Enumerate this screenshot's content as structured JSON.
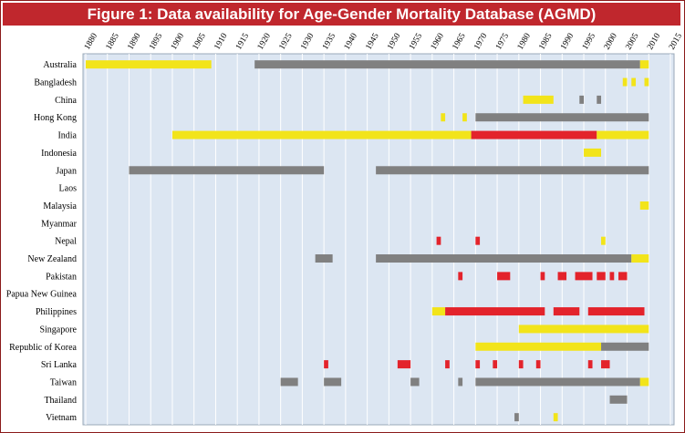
{
  "chart_data": {
    "type": "bar",
    "title": "Figure 1: Data availability for Age-Gender Mortality Database (AGMD)",
    "xlabel": "",
    "ylabel": "",
    "xlim": [
      1880,
      2015
    ],
    "x_ticks": [
      1880,
      1885,
      1890,
      1895,
      1900,
      1905,
      1910,
      1915,
      1920,
      1925,
      1930,
      1935,
      1940,
      1945,
      1950,
      1955,
      1960,
      1965,
      1970,
      1975,
      1980,
      1985,
      1990,
      1995,
      2000,
      2005,
      2010,
      2015
    ],
    "grid": true,
    "colors": {
      "yellow": "#f2e41a",
      "gray": "#808080",
      "red": "#e3232b"
    },
    "categories": [
      "Australia",
      "Bangladesh",
      "China",
      "Hong Kong",
      "India",
      "Indonesia",
      "Japan",
      "Laos",
      "Malaysia",
      "Myanmar",
      "Nepal",
      "New Zealand",
      "Pakistan",
      "Papua New Guinea",
      "Philippines",
      "Singapore",
      "Republic of Korea",
      "Sri Lanka",
      "Taiwan",
      "Thailand",
      "Vietnam"
    ],
    "segments": [
      {
        "country": "Australia",
        "start": 1880,
        "end": 1909,
        "color": "yellow"
      },
      {
        "country": "Australia",
        "start": 1919,
        "end": 2008,
        "color": "gray"
      },
      {
        "country": "Australia",
        "start": 2008,
        "end": 2010,
        "color": "yellow"
      },
      {
        "country": "Bangladesh",
        "start": 2004,
        "end": 2005,
        "color": "yellow"
      },
      {
        "country": "Bangladesh",
        "start": 2006,
        "end": 2007,
        "color": "yellow"
      },
      {
        "country": "Bangladesh",
        "start": 2009,
        "end": 2010,
        "color": "yellow"
      },
      {
        "country": "China",
        "start": 1981,
        "end": 1988,
        "color": "yellow"
      },
      {
        "country": "China",
        "start": 1994,
        "end": 1995,
        "color": "gray"
      },
      {
        "country": "China",
        "start": 1998,
        "end": 1999,
        "color": "gray"
      },
      {
        "country": "Hong Kong",
        "start": 1962,
        "end": 1963,
        "color": "yellow"
      },
      {
        "country": "Hong Kong",
        "start": 1967,
        "end": 1968,
        "color": "yellow"
      },
      {
        "country": "Hong Kong",
        "start": 1970,
        "end": 2010,
        "color": "gray"
      },
      {
        "country": "India",
        "start": 1900,
        "end": 1969,
        "color": "yellow"
      },
      {
        "country": "India",
        "start": 1969,
        "end": 1998,
        "color": "red"
      },
      {
        "country": "India",
        "start": 1998,
        "end": 2010,
        "color": "yellow"
      },
      {
        "country": "Indonesia",
        "start": 1995,
        "end": 1999,
        "color": "yellow"
      },
      {
        "country": "Japan",
        "start": 1890,
        "end": 1935,
        "color": "gray"
      },
      {
        "country": "Japan",
        "start": 1947,
        "end": 2010,
        "color": "gray"
      },
      {
        "country": "Malaysia",
        "start": 2008,
        "end": 2010,
        "color": "yellow"
      },
      {
        "country": "Nepal",
        "start": 1961,
        "end": 1962,
        "color": "red"
      },
      {
        "country": "Nepal",
        "start": 1970,
        "end": 1971,
        "color": "red"
      },
      {
        "country": "Nepal",
        "start": 1999,
        "end": 2000,
        "color": "yellow"
      },
      {
        "country": "New Zealand",
        "start": 1933,
        "end": 1937,
        "color": "gray"
      },
      {
        "country": "New Zealand",
        "start": 1947,
        "end": 2006,
        "color": "gray"
      },
      {
        "country": "New Zealand",
        "start": 2006,
        "end": 2010,
        "color": "yellow"
      },
      {
        "country": "Pakistan",
        "start": 1966,
        "end": 1967,
        "color": "red"
      },
      {
        "country": "Pakistan",
        "start": 1975,
        "end": 1978,
        "color": "red"
      },
      {
        "country": "Pakistan",
        "start": 1985,
        "end": 1986,
        "color": "red"
      },
      {
        "country": "Pakistan",
        "start": 1989,
        "end": 1991,
        "color": "red"
      },
      {
        "country": "Pakistan",
        "start": 1993,
        "end": 1997,
        "color": "red"
      },
      {
        "country": "Pakistan",
        "start": 1998,
        "end": 2000,
        "color": "red"
      },
      {
        "country": "Pakistan",
        "start": 2001,
        "end": 2002,
        "color": "red"
      },
      {
        "country": "Pakistan",
        "start": 2003,
        "end": 2005,
        "color": "red"
      },
      {
        "country": "Philippines",
        "start": 1960,
        "end": 1963,
        "color": "yellow"
      },
      {
        "country": "Philippines",
        "start": 1963,
        "end": 1986,
        "color": "red"
      },
      {
        "country": "Philippines",
        "start": 1988,
        "end": 1994,
        "color": "red"
      },
      {
        "country": "Philippines",
        "start": 1996,
        "end": 2009,
        "color": "red"
      },
      {
        "country": "Singapore",
        "start": 1980,
        "end": 2010,
        "color": "yellow"
      },
      {
        "country": "Republic of Korea",
        "start": 1970,
        "end": 1999,
        "color": "yellow"
      },
      {
        "country": "Republic of Korea",
        "start": 1999,
        "end": 2010,
        "color": "gray"
      },
      {
        "country": "Sri Lanka",
        "start": 1935,
        "end": 1936,
        "color": "red"
      },
      {
        "country": "Sri Lanka",
        "start": 1952,
        "end": 1955,
        "color": "red"
      },
      {
        "country": "Sri Lanka",
        "start": 1963,
        "end": 1964,
        "color": "red"
      },
      {
        "country": "Sri Lanka",
        "start": 1970,
        "end": 1971,
        "color": "red"
      },
      {
        "country": "Sri Lanka",
        "start": 1974,
        "end": 1975,
        "color": "red"
      },
      {
        "country": "Sri Lanka",
        "start": 1980,
        "end": 1981,
        "color": "red"
      },
      {
        "country": "Sri Lanka",
        "start": 1984,
        "end": 1985,
        "color": "red"
      },
      {
        "country": "Sri Lanka",
        "start": 1996,
        "end": 1997,
        "color": "red"
      },
      {
        "country": "Sri Lanka",
        "start": 1999,
        "end": 2001,
        "color": "red"
      },
      {
        "country": "Taiwan",
        "start": 1925,
        "end": 1929,
        "color": "gray"
      },
      {
        "country": "Taiwan",
        "start": 1935,
        "end": 1939,
        "color": "gray"
      },
      {
        "country": "Taiwan",
        "start": 1955,
        "end": 1957,
        "color": "gray"
      },
      {
        "country": "Taiwan",
        "start": 1966,
        "end": 1967,
        "color": "gray"
      },
      {
        "country": "Taiwan",
        "start": 1970,
        "end": 2008,
        "color": "gray"
      },
      {
        "country": "Taiwan",
        "start": 2008,
        "end": 2010,
        "color": "yellow"
      },
      {
        "country": "Thailand",
        "start": 2001,
        "end": 2005,
        "color": "gray"
      },
      {
        "country": "Vietnam",
        "start": 1979,
        "end": 1980,
        "color": "gray"
      },
      {
        "country": "Vietnam",
        "start": 1988,
        "end": 1989,
        "color": "yellow"
      }
    ]
  }
}
